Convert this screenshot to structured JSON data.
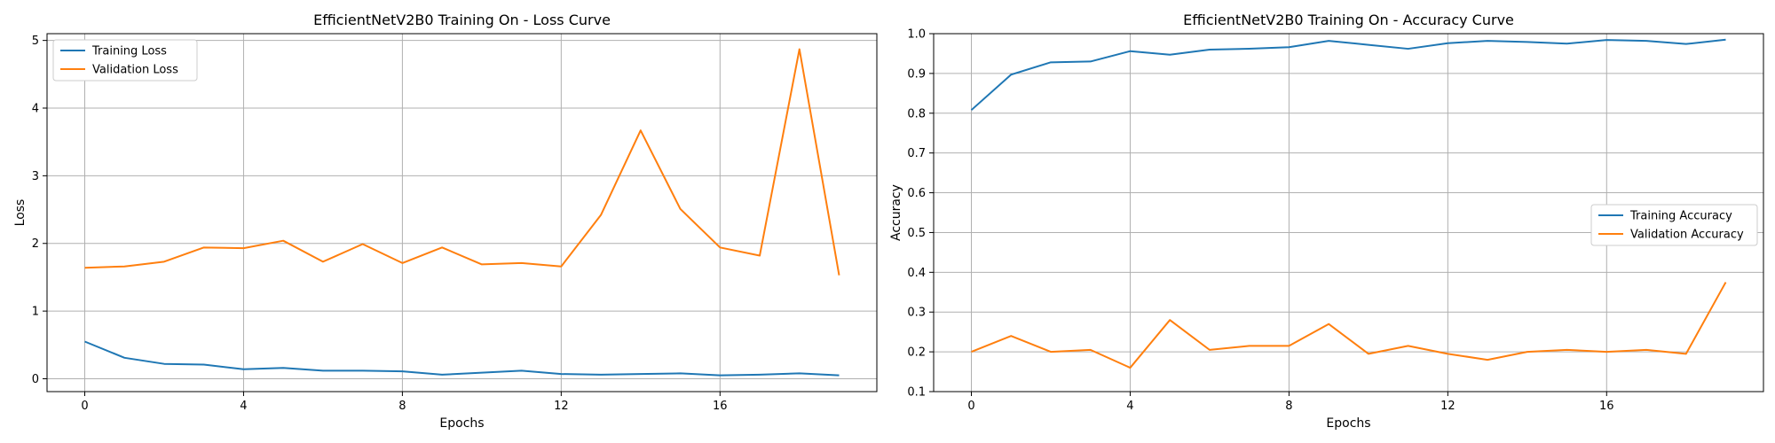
{
  "chart_data": [
    {
      "type": "line",
      "title": "EfficientNetV2B0 Training On - Loss Curve",
      "xlabel": "Epochs",
      "ylabel": "Loss",
      "xlim": [
        -0.95,
        19.95
      ],
      "ylim": [
        -0.19,
        5.1
      ],
      "xticks": [
        0,
        4,
        8,
        12,
        16
      ],
      "yticks": [
        0,
        1,
        2,
        3,
        4,
        5
      ],
      "grid": true,
      "legend_position": "upper-left",
      "x": [
        0,
        1,
        2,
        3,
        4,
        5,
        6,
        7,
        8,
        9,
        10,
        11,
        12,
        13,
        14,
        15,
        16,
        17,
        18,
        19
      ],
      "series": [
        {
          "name": "Training Loss",
          "color": "#1f77b4",
          "values": [
            0.55,
            0.31,
            0.22,
            0.21,
            0.14,
            0.16,
            0.12,
            0.12,
            0.11,
            0.06,
            0.09,
            0.12,
            0.07,
            0.06,
            0.07,
            0.08,
            0.05,
            0.06,
            0.08,
            0.05
          ]
        },
        {
          "name": "Validation Loss",
          "color": "#ff7f0e",
          "values": [
            1.64,
            1.66,
            1.73,
            1.94,
            1.93,
            2.04,
            1.73,
            1.99,
            1.71,
            1.94,
            1.69,
            1.71,
            1.66,
            2.42,
            3.67,
            2.51,
            1.94,
            1.82,
            4.87,
            1.53
          ]
        }
      ]
    },
    {
      "type": "line",
      "title": "EfficientNetV2B0 Training On - Accuracy Curve",
      "xlabel": "Epochs",
      "ylabel": "Accuracy",
      "xlim": [
        -0.95,
        19.95
      ],
      "ylim": [
        0.1,
        1.0
      ],
      "xticks": [
        0,
        4,
        8,
        12,
        16
      ],
      "yticks": [
        0.1,
        0.2,
        0.3,
        0.4,
        0.5,
        0.6,
        0.7,
        0.8,
        0.9,
        1.0
      ],
      "ytick_labels": [
        "0.1",
        "0.2",
        "0.3",
        "0.4",
        "0.5",
        "0.6",
        "0.7",
        "0.8",
        "0.9",
        "1.0"
      ],
      "grid": true,
      "legend_position": "center-right",
      "x": [
        0,
        1,
        2,
        3,
        4,
        5,
        6,
        7,
        8,
        9,
        10,
        11,
        12,
        13,
        14,
        15,
        16,
        17,
        18,
        19
      ],
      "series": [
        {
          "name": "Training Accuracy",
          "color": "#1f77b4",
          "values": [
            0.808,
            0.897,
            0.928,
            0.93,
            0.956,
            0.947,
            0.96,
            0.962,
            0.966,
            0.982,
            0.972,
            0.962,
            0.976,
            0.982,
            0.979,
            0.975,
            0.984,
            0.982,
            0.974,
            0.985
          ]
        },
        {
          "name": "Validation Accuracy",
          "color": "#ff7f0e",
          "values": [
            0.2,
            0.24,
            0.2,
            0.205,
            0.16,
            0.28,
            0.205,
            0.215,
            0.215,
            0.27,
            0.195,
            0.215,
            0.195,
            0.18,
            0.2,
            0.205,
            0.2,
            0.205,
            0.195,
            0.375
          ]
        }
      ]
    }
  ]
}
